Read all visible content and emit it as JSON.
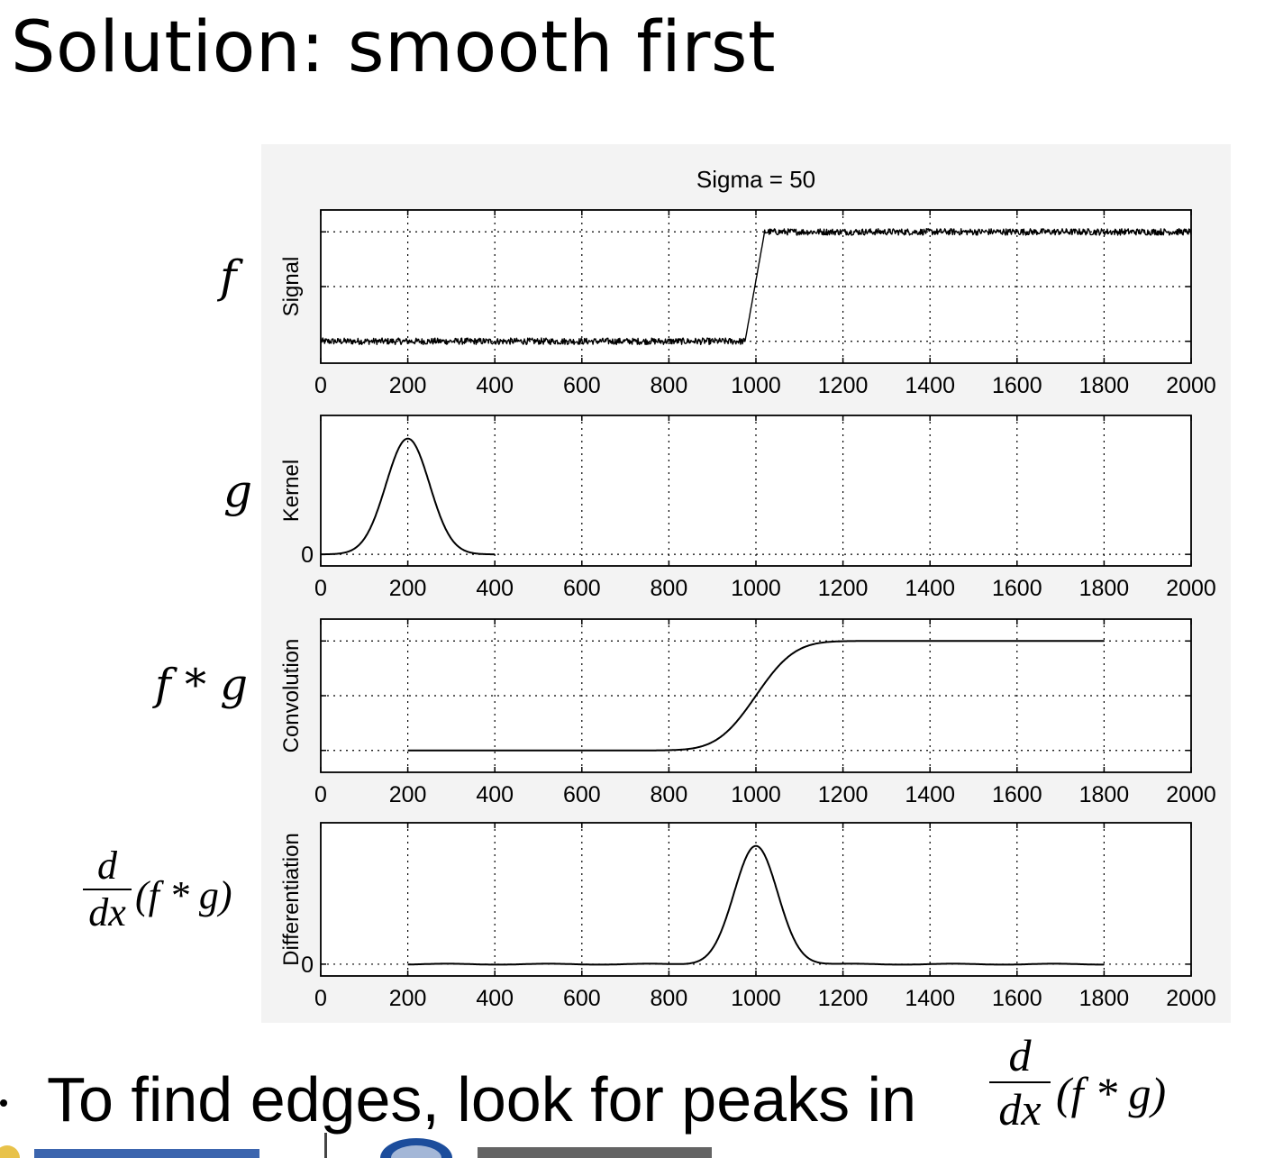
{
  "title": "Solution: smooth first",
  "bullet": "To find edges, look for peaks in",
  "math_labels": {
    "f": "f",
    "g": "g",
    "fg": "f * g",
    "d": "d",
    "dx": "dx",
    "deriv_expr": "(f * g)"
  },
  "colors": {
    "line": "#000000",
    "figure_bg": "#f3f3f3",
    "axes_bg": "#ffffff"
  },
  "chart_data": [
    {
      "type": "line",
      "title": "Sigma = 50",
      "xlabel": "",
      "ylabel": "Signal",
      "xlim": [
        0,
        2000
      ],
      "xticks": [
        0,
        200,
        400,
        600,
        800,
        1000,
        1200,
        1400,
        1600,
        1800,
        2000
      ],
      "ylim": [
        -0.4,
        2.4
      ],
      "yticklabels_shown": false,
      "grid": true,
      "series": [
        {
          "x": [
            0,
            975,
            1020,
            2000
          ],
          "y": [
            0,
            0,
            2,
            2
          ],
          "noise": "small random noise on both levels"
        }
      ]
    },
    {
      "type": "line",
      "title": "",
      "xlabel": "",
      "ylabel": "Kernel",
      "xlim": [
        0,
        2000
      ],
      "xticks": [
        0,
        200,
        400,
        600,
        800,
        1000,
        1200,
        1400,
        1600,
        1800,
        2000
      ],
      "ylim": [
        -0.1,
        1.2
      ],
      "yticks": [
        0
      ],
      "grid": true,
      "series": [
        {
          "x_from": 0,
          "x_to": 400,
          "shape": "gaussian",
          "center": 200,
          "sigma": 50,
          "peak": 1
        }
      ]
    },
    {
      "type": "line",
      "title": "",
      "xlabel": "",
      "ylabel": "Convolution",
      "xlim": [
        0,
        2000
      ],
      "xticks": [
        0,
        200,
        400,
        600,
        800,
        1000,
        1200,
        1400,
        1600,
        1800,
        2000
      ],
      "ylim": [
        -0.4,
        2.4
      ],
      "yticklabels_shown": false,
      "grid": true,
      "series": [
        {
          "x_from": 200,
          "x_to": 1800,
          "shape": "smoothed step",
          "step_at": 1000,
          "sigma": 50,
          "low": 0,
          "high": 2
        }
      ]
    },
    {
      "type": "line",
      "title": "",
      "xlabel": "",
      "ylabel": "Differentiation",
      "xlim": [
        0,
        2000
      ],
      "xticks": [
        0,
        200,
        400,
        600,
        800,
        1000,
        1200,
        1400,
        1600,
        1800,
        2000
      ],
      "ylim": [
        -0.1,
        1.2
      ],
      "yticks": [
        0
      ],
      "grid": true,
      "series": [
        {
          "x_from": 200,
          "x_to": 1800,
          "shape": "gaussian",
          "center": 1000,
          "sigma": 50,
          "peak": 1
        }
      ]
    }
  ]
}
